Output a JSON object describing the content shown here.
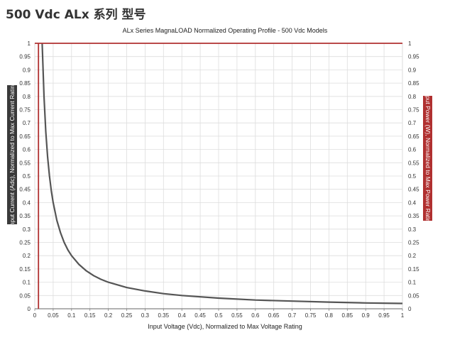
{
  "page_heading": "500 Vdc ALx 系列 型号",
  "chart_data": {
    "type": "line",
    "title": "ALx Series MagnaLOAD Normalized Operating Profile - 500 Vdc Models",
    "xlabel": "Input Voltage (Vdc), Normalized to Max Voltage Rating",
    "ylabel_left": "Input Current (Adc), Normalized to Max Current Rating",
    "ylabel_right": "Input Power (W), Normalized to Max Power Rating",
    "xlim": [
      0,
      1
    ],
    "ylim": [
      0,
      1
    ],
    "grid": true,
    "x_ticks": [
      "0",
      "0.05",
      "0.1",
      "0.15",
      "0.2",
      "0.25",
      "0.3",
      "0.35",
      "0.4",
      "0.45",
      "0.5",
      "0.55",
      "0.6",
      "0.65",
      "0.7",
      "0.75",
      "0.8",
      "0.85",
      "0.9",
      "0.95",
      "1"
    ],
    "y_ticks": [
      "0",
      "0.05",
      "0.1",
      "0.15",
      "0.2",
      "0.25",
      "0.3",
      "0.35",
      "0.4",
      "0.45",
      "0.5",
      "0.55",
      "0.6",
      "0.65",
      "0.7",
      "0.75",
      "0.8",
      "0.85",
      "0.9",
      "0.95",
      "1"
    ],
    "series": [
      {
        "color": "#555555",
        "x": [
          0.02,
          0.025,
          0.03,
          0.035,
          0.04,
          0.045,
          0.05,
          0.06,
          0.07,
          0.08,
          0.09,
          0.1,
          0.12,
          0.14,
          0.16,
          0.18,
          0.2,
          0.25,
          0.3,
          0.35,
          0.4,
          0.5,
          0.6,
          0.7,
          0.8,
          0.9,
          1.0
        ],
        "y": [
          1.0,
          0.8,
          0.667,
          0.571,
          0.5,
          0.444,
          0.4,
          0.333,
          0.286,
          0.25,
          0.222,
          0.2,
          0.167,
          0.143,
          0.125,
          0.111,
          0.1,
          0.08,
          0.067,
          0.057,
          0.05,
          0.04,
          0.033,
          0.029,
          0.025,
          0.022,
          0.02
        ]
      },
      {
        "color": "#b03030",
        "x": [
          0.0,
          0.02,
          1.0
        ],
        "y": [
          1.0,
          1.0,
          1.0
        ]
      },
      {
        "color": "#b03030",
        "x": [
          0.01,
          0.01
        ],
        "y": [
          0.0,
          1.0
        ]
      }
    ]
  }
}
